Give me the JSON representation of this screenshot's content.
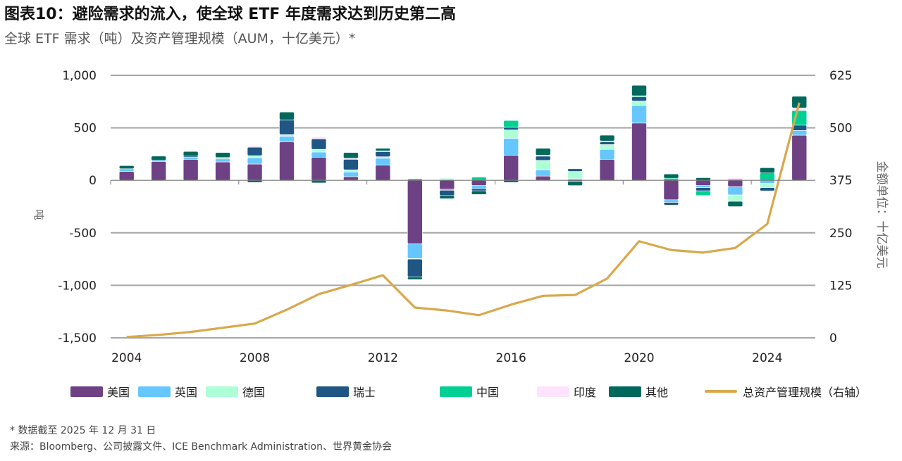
{
  "header": {
    "title": "图表10：避险需求的流入，使全球 ETF 年度需求达到历史第二高",
    "subtitle": "全球 ETF 需求（吨）及资产管理规模（AUM，十亿美元）*"
  },
  "footer": {
    "note": "* 数据截至 2025 年 12 月 31 日",
    "source": "来源：Bloomberg、公司披露文件、ICE Benchmark Administration、世界黄金协会"
  },
  "chart_data": {
    "type": "bar",
    "stacked": true,
    "title": "图表10：避险需求的流入，使全球 ETF 年度需求达到历史第二高",
    "subtitle": "全球 ETF 需求（吨）及资产管理规模（AUM，十亿美元）*",
    "xlabel": "",
    "ylabel": "吨",
    "y2label": "金额单位：十亿美元",
    "ylim": [
      -1500,
      1000
    ],
    "y2lim": [
      0,
      625
    ],
    "yticks": [
      1000,
      500,
      0,
      -500,
      -1000,
      -1500
    ],
    "ytick_labels": [
      "1,000",
      "500",
      "0",
      "-500",
      "-1,000",
      "-1,500"
    ],
    "y2ticks": [
      625,
      500,
      375,
      250,
      125,
      0
    ],
    "y2tick_labels": [
      "625",
      "500",
      "375",
      "250",
      "125",
      "0"
    ],
    "xtick_labels": [
      "2004",
      "2008",
      "2012",
      "2016",
      "2020",
      "2024"
    ],
    "grid": true,
    "legend_position": "bottom",
    "categories": [
      "2004",
      "2005",
      "2006",
      "2007",
      "2008",
      "2009",
      "2010",
      "2011",
      "2012",
      "2013",
      "2014",
      "2015",
      "2016",
      "2017",
      "2018",
      "2019",
      "2020",
      "2021",
      "2022",
      "2023",
      "2024",
      "2025"
    ],
    "series": [
      {
        "name": "美国",
        "color": "#6e4185",
        "values": [
          85,
          180,
          200,
          175,
          155,
          365,
          220,
          35,
          145,
          -605,
          -85,
          -50,
          240,
          40,
          -10,
          200,
          545,
          -185,
          -50,
          -60,
          0,
          430
        ]
      },
      {
        "name": "英国",
        "color": "#66c7ff",
        "values": [
          25,
          10,
          20,
          30,
          60,
          55,
          50,
          45,
          65,
          -140,
          -10,
          -30,
          160,
          60,
          15,
          95,
          170,
          -25,
          -20,
          -80,
          -30,
          45
        ]
      },
      {
        "name": "德国",
        "color": "#adffd6",
        "values": [
          0,
          0,
          0,
          5,
          20,
          15,
          25,
          20,
          15,
          -5,
          20,
          0,
          80,
          90,
          70,
          45,
          40,
          0,
          0,
          -60,
          -40,
          0
        ]
      },
      {
        "name": "瑞士",
        "color": "#1f5684",
        "values": [
          0,
          0,
          10,
          10,
          80,
          140,
          100,
          100,
          50,
          -170,
          -50,
          -20,
          25,
          40,
          25,
          25,
          40,
          -25,
          -30,
          0,
          -30,
          50
        ]
      },
      {
        "name": "中国",
        "color": "#00d094",
        "values": [
          0,
          0,
          0,
          0,
          0,
          0,
          0,
          0,
          0,
          15,
          0,
          30,
          65,
          0,
          0,
          0,
          10,
          20,
          -45,
          10,
          70,
          140
        ]
      },
      {
        "name": "印度",
        "color": "#fde3fb",
        "values": [
          0,
          0,
          0,
          0,
          15,
          0,
          20,
          10,
          5,
          0,
          0,
          0,
          0,
          10,
          0,
          10,
          0,
          0,
          0,
          15,
          0,
          25
        ]
      },
      {
        "name": "其他",
        "color": "#00695c",
        "values": [
          30,
          40,
          45,
          45,
          -20,
          75,
          -25,
          55,
          25,
          -25,
          -30,
          -35,
          -20,
          65,
          -40,
          55,
          100,
          40,
          25,
          -50,
          50,
          110
        ]
      }
    ],
    "line_series": {
      "name": "总资产管理规模（右轴）",
      "color": "#d9a84c",
      "axis": "right",
      "values": [
        2,
        7,
        14,
        24,
        34,
        67,
        104,
        126,
        149,
        72,
        65,
        54,
        79,
        100,
        102,
        141,
        230,
        209,
        203,
        214,
        271,
        560
      ]
    }
  }
}
